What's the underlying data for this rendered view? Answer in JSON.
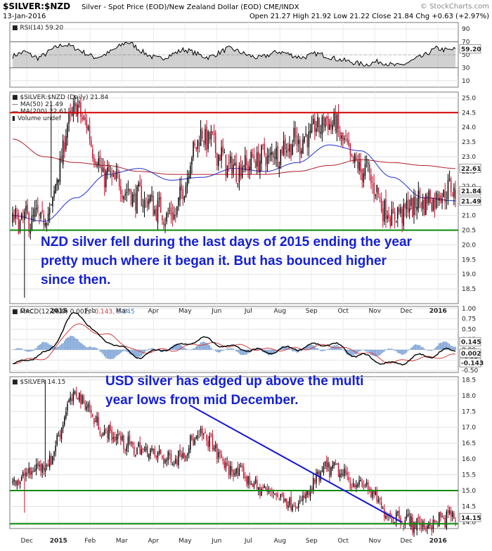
{
  "header": {
    "symbol": "$SILVER:$NZD",
    "description": "Silver - Spot Price (EOD)/New Zealand Dollar (EOD) CME/INDX",
    "watermark": "© StockCharts.com",
    "date": "13-Jan-2016",
    "ohlc": "Open 21.27  High 21.92  Low 21.22  Close 21.84  Chg +0.63 (+2.97%)"
  },
  "colors": {
    "bull": "#000000",
    "bear": "#c8102e",
    "ma50": "#1f2fd0",
    "ma200": "#b01f2a",
    "resistance": "#d40000",
    "support": "#0a8a0a",
    "trendline": "#1515d8",
    "macd": "#000000",
    "signal": "#d43b3b",
    "hist": "#4a7ec7",
    "annotation": "#1520d6"
  },
  "chart_data": [
    {
      "id": "rsi",
      "type": "line",
      "legend": "RSI(14) 59.20",
      "ylim": [
        0,
        100
      ],
      "ticks": [
        10,
        30,
        50,
        70,
        90
      ],
      "current_value": 59.2,
      "current_label": "59.20",
      "reference_lines": [
        30,
        70
      ],
      "values": [
        48,
        52,
        55,
        49,
        45,
        50,
        57,
        62,
        66,
        64,
        60,
        55,
        50,
        46,
        48,
        52,
        58,
        64,
        70,
        66,
        58,
        52,
        47,
        44,
        46,
        50,
        54,
        58,
        56,
        52,
        48,
        46,
        50,
        55,
        60,
        58,
        54,
        50,
        47,
        45,
        48,
        52,
        55,
        53,
        50,
        47,
        46,
        49,
        52,
        50,
        47,
        44,
        42,
        40,
        38,
        36,
        35,
        38,
        40,
        37,
        34,
        33,
        36,
        40,
        45,
        48,
        55,
        60,
        58,
        57,
        59
      ]
    },
    {
      "id": "nzd",
      "type": "candlestick",
      "legend": "$SILVER:$NZD (Daily) 21.84",
      "legend_ma50": "MA(50) 21.49",
      "legend_ma200": "MA(200) 22.61",
      "legend_volume": "Volume undef",
      "ylim": [
        18.0,
        25.2
      ],
      "ticks": [
        18.5,
        19.0,
        19.5,
        20.0,
        20.5,
        21.0,
        21.5,
        22.0,
        22.5,
        23.0,
        23.5,
        24.0,
        24.5,
        25.0
      ],
      "x_labels": [
        "Dec",
        "2015",
        "Feb",
        "Mar",
        "Apr",
        "May",
        "Jun",
        "Jul",
        "Aug",
        "Sep",
        "Oct",
        "Nov",
        "Dec",
        "2016"
      ],
      "x_label_month_index": [
        0,
        1,
        2,
        3,
        4,
        5,
        6,
        7,
        8,
        9,
        10,
        11,
        12,
        13
      ],
      "close_label": "21.84",
      "ma50_label": "21.49",
      "ma200_label": "22.61",
      "resistance": 24.5,
      "support": 20.5,
      "monthly_anchors": [
        20.8,
        20.9,
        24.6,
        22.3,
        21.6,
        21.0,
        23.7,
        22.6,
        23.0,
        23.5,
        24.2,
        22.6,
        21.0,
        21.5,
        21.9
      ],
      "ma50_anchors": [
        21.0,
        20.8,
        21.6,
        22.4,
        22.6,
        22.2,
        22.3,
        22.6,
        22.5,
        22.8,
        23.4,
        23.2,
        22.3,
        21.6,
        21.5
      ],
      "ma200_anchors": [
        23.6,
        23.0,
        22.8,
        22.7,
        22.5,
        22.4,
        22.4,
        22.4,
        22.4,
        22.5,
        22.7,
        22.9,
        22.8,
        22.7,
        22.6
      ],
      "outliers": [
        {
          "day": 8,
          "low": 18.2
        },
        {
          "day": 26,
          "low": 24.9
        }
      ],
      "annotation": [
        "NZD silver fell during the last days of 2015 ending the year",
        "pretty much where it began it. But has bounced higher",
        "since then."
      ]
    },
    {
      "id": "macd",
      "type": "line",
      "legend": "MACD(12,26,9) 0.002, -0.143, 0.145",
      "legend_macd": "MACD(12,26,9) 0.002,",
      "legend_signal": "-0.143,",
      "legend_hist": "0.145",
      "ylim": [
        -0.55,
        1.05
      ],
      "ticks": [
        -0.5,
        -0.25,
        0.0,
        0.25,
        0.5,
        0.75,
        1.0
      ],
      "tick_labels": [
        "-0.50",
        "-0.25",
        "0.00",
        "0.25",
        "0.50",
        "0.75",
        "1.00"
      ],
      "labels_right": [
        "0.145",
        "0.002",
        "-0.143"
      ],
      "macd_anchors": [
        -0.35,
        -0.1,
        0.85,
        0.2,
        -0.15,
        0.05,
        0.25,
        0.05,
        -0.05,
        0.05,
        0.15,
        -0.15,
        -0.35,
        -0.15,
        0.0
      ],
      "signal_anchors": [
        -0.3,
        -0.2,
        0.6,
        0.35,
        -0.05,
        0.0,
        0.15,
        0.1,
        0.0,
        0.02,
        0.1,
        -0.05,
        -0.3,
        -0.2,
        -0.14
      ]
    },
    {
      "id": "usd",
      "type": "candlestick",
      "legend": "$SILVER 14.15",
      "ylim": [
        13.8,
        18.6
      ],
      "ticks": [
        14.0,
        14.5,
        15.0,
        15.5,
        16.0,
        16.5,
        17.0,
        17.5,
        18.0,
        18.5
      ],
      "close_label": "14.15",
      "support_levels": [
        15.0,
        13.95
      ],
      "trendline": {
        "from": {
          "month_index": 5.6,
          "price": 17.7
        },
        "to": {
          "month_index": 12.3,
          "price": 14.0
        }
      },
      "monthly_anchors": [
        15.3,
        15.8,
        18.0,
        16.8,
        16.3,
        16.0,
        16.7,
        15.6,
        15.0,
        14.6,
        15.7,
        15.2,
        14.2,
        13.9,
        14.2
      ],
      "outliers": [
        {
          "day": 8,
          "low": 14.3
        },
        {
          "day": 22,
          "high": 18.5
        }
      ],
      "annotation": [
        "USD silver has edged up above the multi",
        "year lows from mid December."
      ]
    }
  ]
}
